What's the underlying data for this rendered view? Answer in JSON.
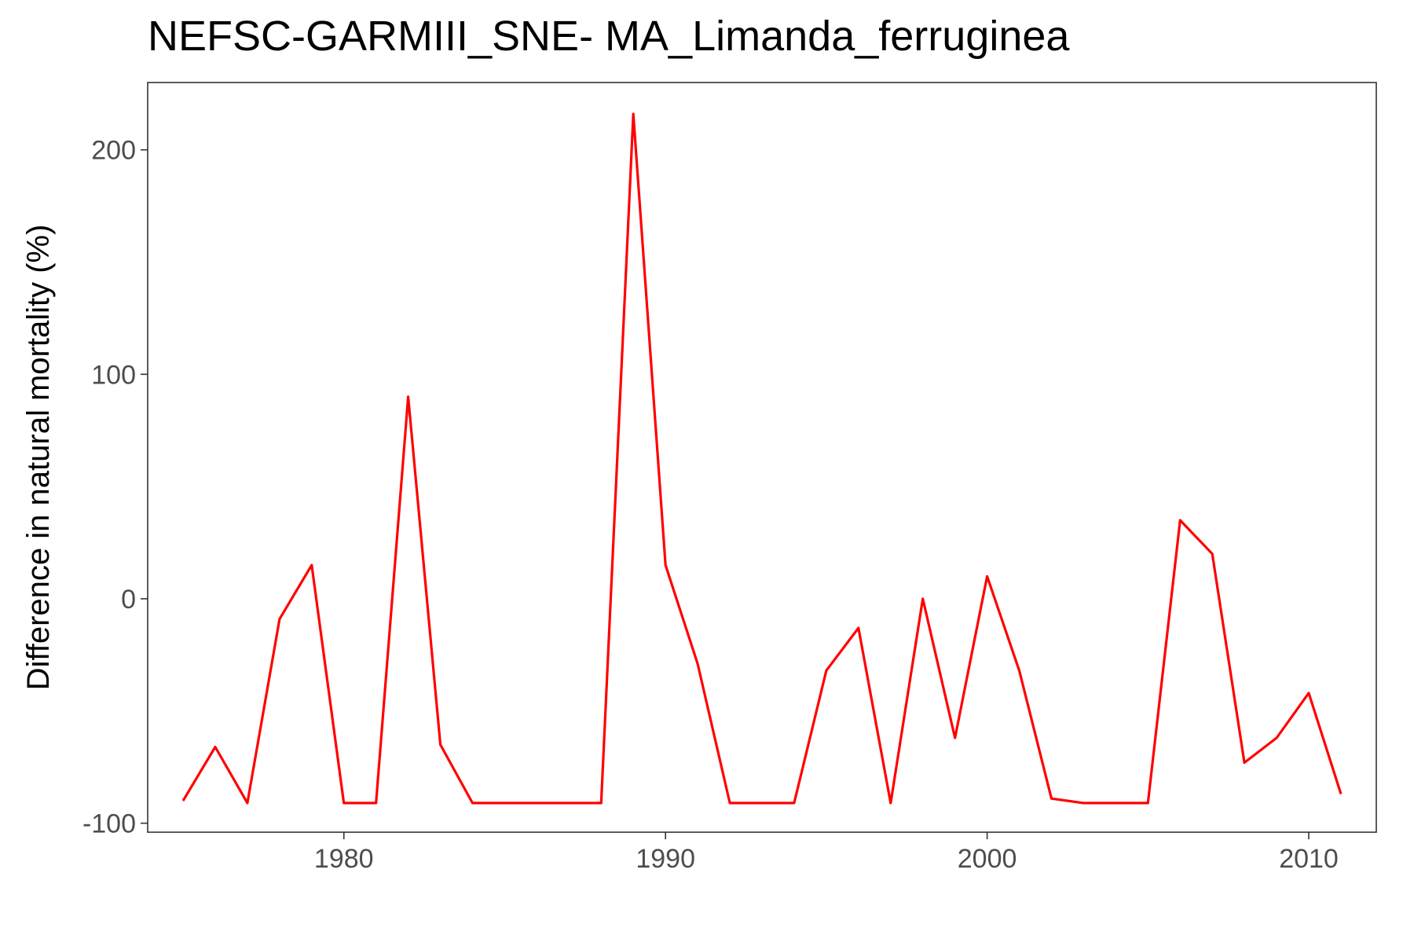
{
  "chart_data": {
    "type": "line",
    "title": "NEFSC-GARMIII_SNE- MA_Limanda_ferruginea",
    "xlabel": "",
    "ylabel": "Difference in natural mortality (%)",
    "x": [
      1975,
      1976,
      1977,
      1978,
      1979,
      1980,
      1981,
      1982,
      1983,
      1984,
      1985,
      1986,
      1987,
      1988,
      1989,
      1990,
      1991,
      1992,
      1993,
      1994,
      1995,
      1996,
      1997,
      1998,
      1999,
      2000,
      2001,
      2002,
      2003,
      2004,
      2005,
      2006,
      2007,
      2008,
      2009,
      2010,
      2011
    ],
    "series": [
      {
        "values": [
          -90,
          -66,
          -91,
          -9,
          15,
          -91,
          -91,
          90,
          -65,
          -91,
          -91,
          -91,
          -91,
          -91,
          216,
          15,
          -29,
          -91,
          -91,
          -91,
          -32,
          -13,
          -91,
          0,
          -62,
          10,
          -32,
          -89,
          -91,
          -91,
          -91,
          35,
          20,
          -73,
          -62,
          -42,
          -87
        ],
        "color": "#ff0000"
      }
    ],
    "xlim": [
      1973.9,
      2012.1
    ],
    "ylim": [
      -104,
      230
    ],
    "xticks": [
      1980,
      1990,
      2000,
      2010
    ],
    "yticks": [
      -100,
      0,
      100,
      200
    ],
    "grid": false,
    "legend": "none"
  }
}
